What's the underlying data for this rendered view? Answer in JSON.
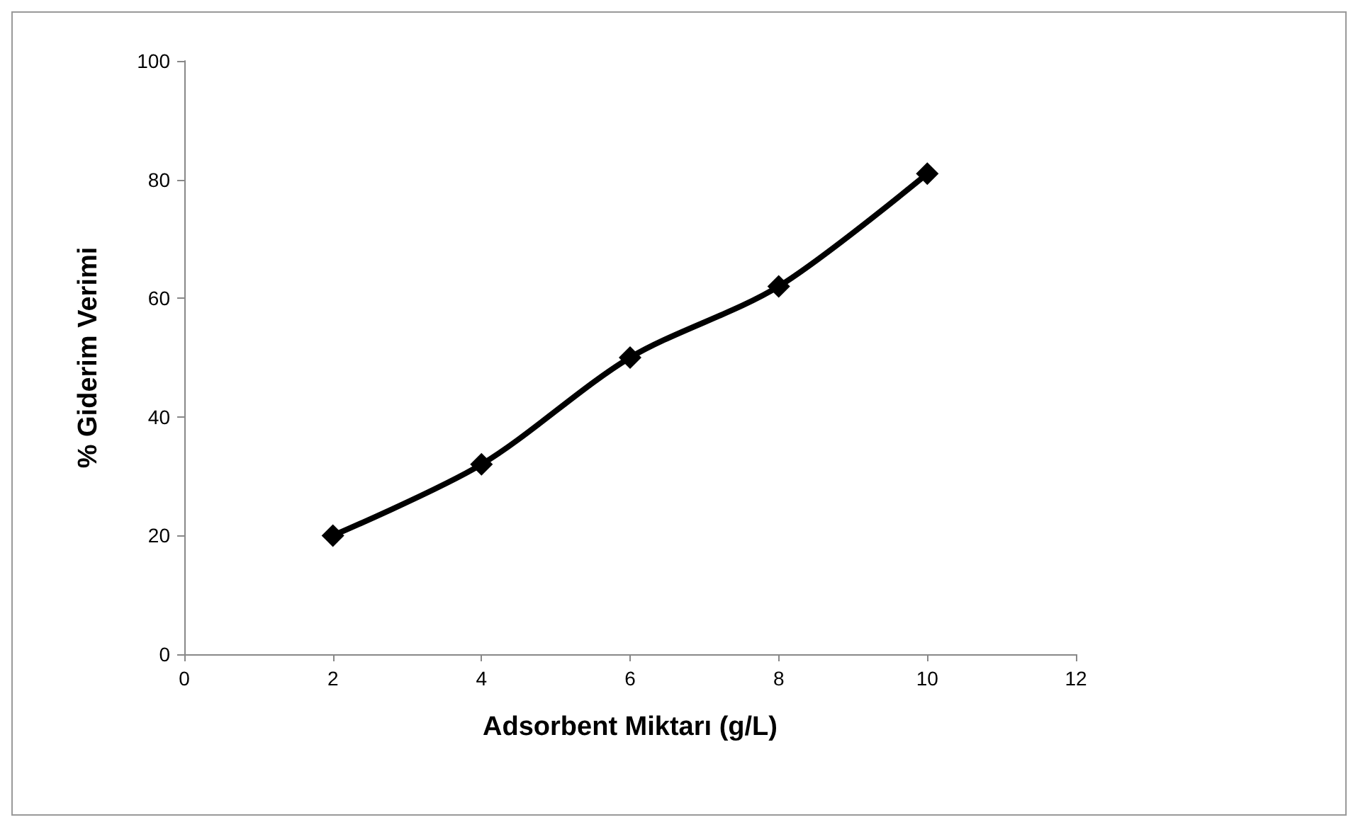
{
  "chart_data": {
    "type": "line",
    "xlabel": "Adsorbent Miktarı (g/L)",
    "ylabel": "% Giderim Verimi",
    "x": [
      2,
      4,
      6,
      8,
      10
    ],
    "series": [
      {
        "color": "#000000",
        "values": [
          20,
          32,
          50,
          62,
          81
        ]
      }
    ],
    "xlim": [
      0,
      12
    ],
    "xticks": [
      0,
      2,
      4,
      6,
      8,
      10,
      12
    ],
    "ylim": [
      0,
      100
    ],
    "yticks": [
      0,
      20,
      40,
      60,
      80,
      100
    ],
    "marker": "diamond",
    "line_style": "solid"
  }
}
